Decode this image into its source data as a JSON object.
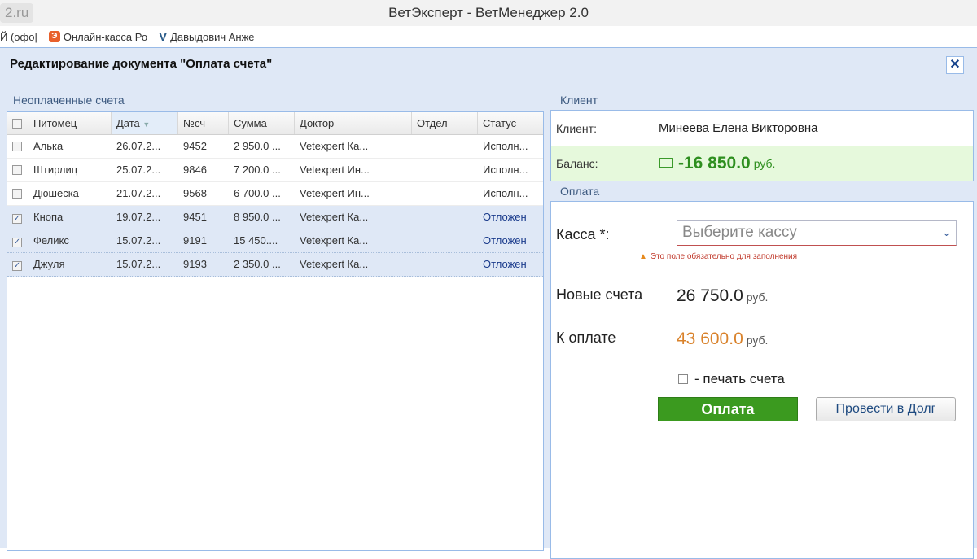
{
  "browser": {
    "url": "2.ru",
    "window_title": "ВетЭксперт - ВетМенеджер 2.0",
    "bookmarks": [
      {
        "label": "Й (офо|"
      },
      {
        "label": "Онлайн-касса Ро"
      },
      {
        "label": "Давыдович Анже"
      }
    ]
  },
  "dialog": {
    "title": "Редактирование документа \"Оплата счета\"",
    "close": "✕"
  },
  "invoices": {
    "title": "Неоплаченные счета",
    "columns": [
      "Питомец",
      "Дата",
      "№сч",
      "Сумма",
      "Доктор",
      "",
      "Отдел",
      "Статус"
    ],
    "rows": [
      {
        "checked": false,
        "pet": "Алька",
        "date": "26.07.2...",
        "num": "9452",
        "sum": "2 950.0 ...",
        "doctor": "Vetexpert Ка...",
        "dept": "",
        "status": "Исполн..."
      },
      {
        "checked": false,
        "pet": "Штирлиц",
        "date": "25.07.2...",
        "num": "9846",
        "sum": "7 200.0 ...",
        "doctor": "Vetexpert Ин...",
        "dept": "",
        "status": "Исполн..."
      },
      {
        "checked": false,
        "pet": "Дюшеска",
        "date": "21.07.2...",
        "num": "9568",
        "sum": "6 700.0 ...",
        "doctor": "Vetexpert Ин...",
        "dept": "",
        "status": "Исполн..."
      },
      {
        "checked": true,
        "pet": "Кнопа",
        "date": "19.07.2...",
        "num": "9451",
        "sum": "8 950.0 ...",
        "doctor": "Vetexpert Ка...",
        "dept": "",
        "status": "Отложен"
      },
      {
        "checked": true,
        "pet": "Феликс",
        "date": "15.07.2...",
        "num": "9191",
        "sum": "15 450....",
        "doctor": "Vetexpert Ка...",
        "dept": "",
        "status": "Отложен"
      },
      {
        "checked": true,
        "pet": "Джуля",
        "date": "15.07.2...",
        "num": "9193",
        "sum": "2 350.0 ...",
        "doctor": "Vetexpert Ка...",
        "dept": "",
        "status": "Отложен"
      }
    ]
  },
  "client": {
    "title": "Клиент",
    "client_label": "Клиент:",
    "client_name": "Минеева Елена Викторовна",
    "balance_label": "Баланс:",
    "balance": "-16 850.0",
    "currency": "руб."
  },
  "payment": {
    "title": "Оплата",
    "kassa_label": "Касса *:",
    "kassa_placeholder": "Выберите кассу",
    "kassa_error": "Это поле обязательно для заполнения",
    "new_label": "Новые счета",
    "new_value": "26 750.0",
    "due_label": "К оплате",
    "due_value": "43 600.0",
    "currency": "руб.",
    "print_label": "- печать счета",
    "print_checked": false,
    "pay_button": "Оплата",
    "debt_button": "Провести в Долг"
  },
  "colors": {
    "balance": "#2e8f1f",
    "due": "#d9822b",
    "pay_button": "#3b9a1f"
  }
}
